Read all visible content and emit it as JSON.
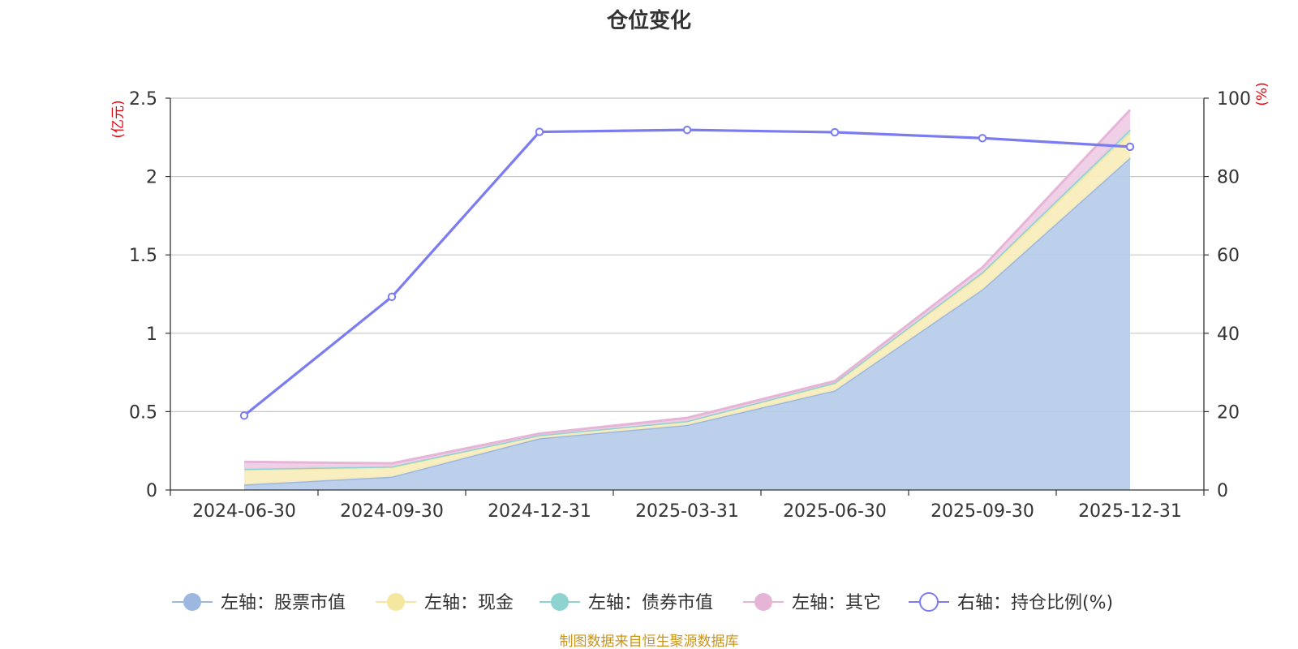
{
  "chart_data": {
    "type": "area",
    "title": "仓位变化",
    "categories": [
      "2024-06-30",
      "2024-09-30",
      "2024-12-31",
      "2025-03-31",
      "2025-06-30",
      "2025-09-30",
      "2025-12-31"
    ],
    "left_axis": {
      "unit": "(亿元)",
      "min": 0,
      "max": 2.5,
      "ticks": [
        "0",
        "0.5",
        "1",
        "1.5",
        "2",
        "2.5"
      ]
    },
    "right_axis": {
      "unit": "(%)",
      "min": 0,
      "max": 100,
      "ticks": [
        "0",
        "20",
        "40",
        "60",
        "80",
        "100"
      ]
    },
    "series": [
      {
        "name": "左轴：股票市值",
        "axis": "left",
        "stacked": true,
        "color": "#9db8e0",
        "fill": "#b8cdea",
        "values": [
          0.035,
          0.085,
          0.33,
          0.415,
          0.635,
          1.28,
          2.12
        ]
      },
      {
        "name": "左轴：现金",
        "axis": "left",
        "stacked": true,
        "color": "#f5e6a0",
        "fill": "#f8edbd",
        "values": [
          0.095,
          0.06,
          0.02,
          0.025,
          0.045,
          0.1,
          0.16
        ]
      },
      {
        "name": "左轴：债券市值",
        "axis": "left",
        "stacked": true,
        "color": "#8fd3d0",
        "fill": "#bfe6e3",
        "values": [
          0.005,
          0.005,
          0.0,
          0.0,
          0.005,
          0.01,
          0.02
        ]
      },
      {
        "name": "左轴：其它",
        "axis": "left",
        "stacked": true,
        "color": "#e6b4d7",
        "fill": "#efcde6",
        "values": [
          0.045,
          0.02,
          0.01,
          0.02,
          0.01,
          0.03,
          0.125
        ]
      },
      {
        "name": "右轴：持仓比例(%)",
        "axis": "right",
        "type": "line",
        "color": "#7b7cf0",
        "values": [
          19.0,
          49.3,
          91.4,
          91.9,
          91.3,
          89.8,
          87.6
        ]
      }
    ]
  },
  "source_text": "制图数据来自恒生聚源数据库"
}
